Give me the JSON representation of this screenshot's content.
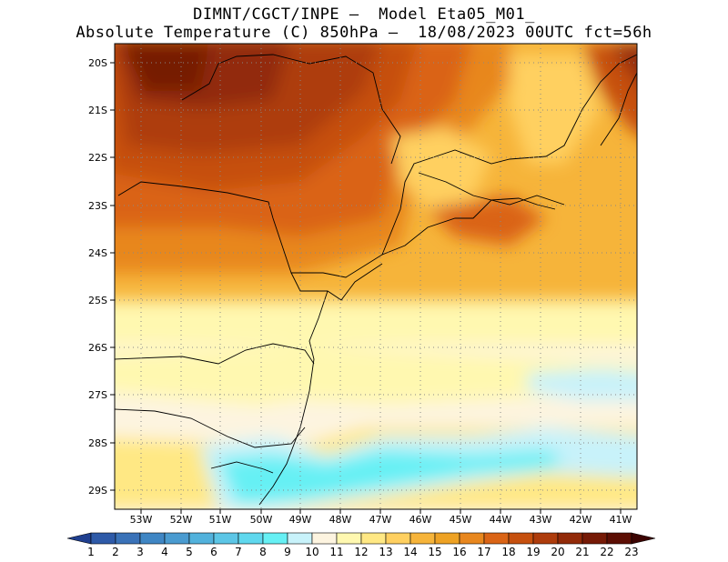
{
  "header": {
    "line1": "DIMNT/CGCT/INPE –  Model Eta05_M01_",
    "line2": "Absolute Temperature (C) 850hPa –  18/08/2023 00UTC fct=56h"
  },
  "axes": {
    "lat_labels": [
      "20S",
      "21S",
      "22S",
      "23S",
      "24S",
      "25S",
      "26S",
      "27S",
      "28S",
      "29S"
    ],
    "lon_labels": [
      "53W",
      "52W",
      "51W",
      "50W",
      "49W",
      "48W",
      "47W",
      "46W",
      "45W",
      "44W",
      "43W",
      "42W",
      "41W"
    ]
  },
  "colorbar": {
    "labels": [
      "1",
      "2",
      "3",
      "4",
      "5",
      "6",
      "7",
      "8",
      "9",
      "10",
      "11",
      "12",
      "13",
      "14",
      "15",
      "16",
      "17",
      "18",
      "19",
      "20",
      "21",
      "22",
      "23"
    ],
    "colors": [
      "#1f3f8f",
      "#2e5aa8",
      "#3a72b8",
      "#3f86c4",
      "#4a9bd0",
      "#52b2dc",
      "#5cc6e6",
      "#5fd8ee",
      "#66f0f4",
      "#c8f2fa",
      "#fdf4e0",
      "#fff8b0",
      "#ffe884",
      "#ffd060",
      "#f6b43a",
      "#eea224",
      "#e8871e",
      "#da6416",
      "#c6500e",
      "#ae3c0c",
      "#922a08",
      "#761a06",
      "#5c0e04",
      "#3c0402"
    ]
  }
}
